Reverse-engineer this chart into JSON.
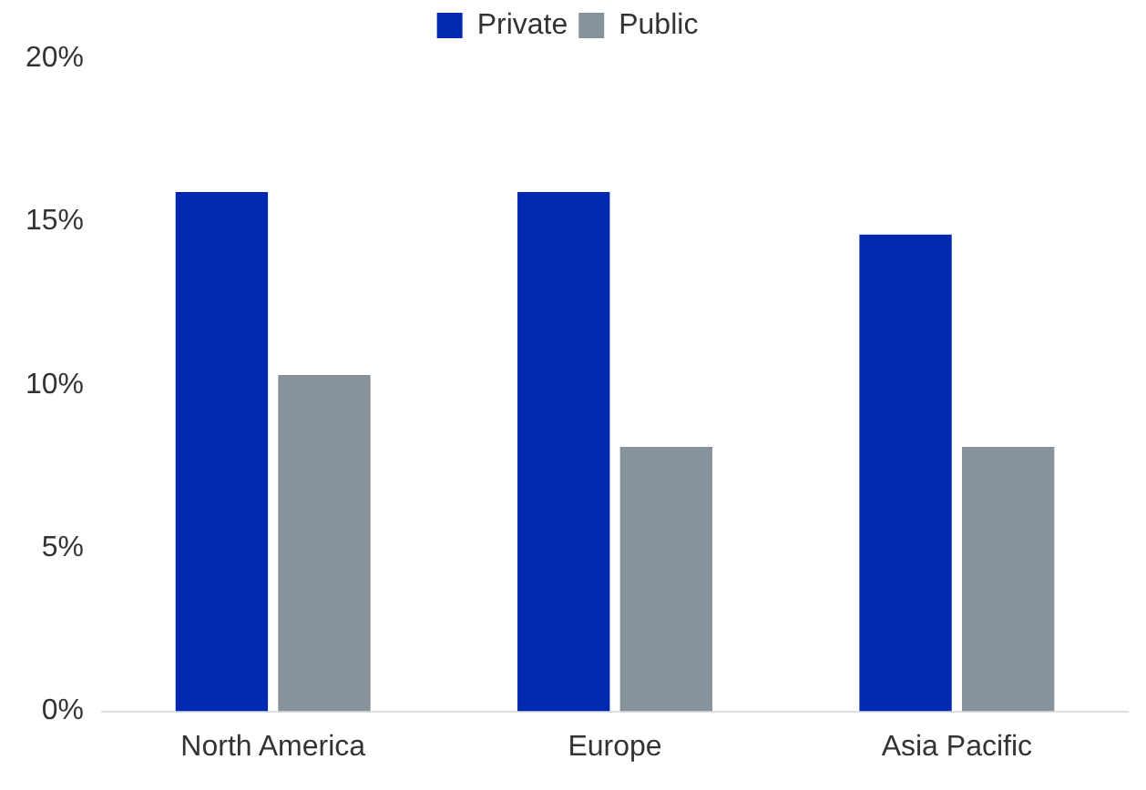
{
  "chart_data": {
    "type": "bar",
    "categories": [
      "North America",
      "Europe",
      "Asia Pacific"
    ],
    "series": [
      {
        "name": "Private",
        "color": "#0029b0",
        "values": [
          15.9,
          15.9,
          14.6
        ]
      },
      {
        "name": "Public",
        "color": "#87939a",
        "values": [
          10.3,
          8.1,
          8.1
        ]
      }
    ],
    "ylim": [
      0,
      20
    ],
    "yticks": [
      {
        "value": 0,
        "label": "0%"
      },
      {
        "value": 5,
        "label": "5%"
      },
      {
        "value": 10,
        "label": "10%"
      },
      {
        "value": 15,
        "label": "15%"
      },
      {
        "value": 20,
        "label": "20%"
      }
    ],
    "grid": false,
    "legend": "top"
  }
}
